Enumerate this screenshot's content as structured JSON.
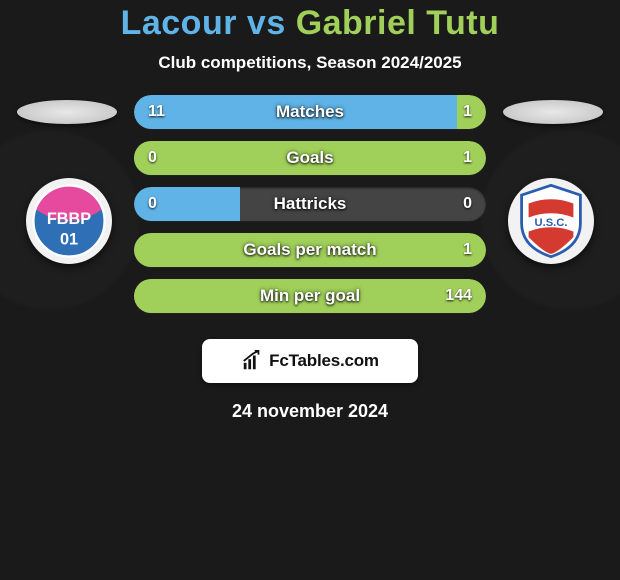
{
  "title": {
    "player1": "Lacour",
    "vs": "vs",
    "player2": "Gabriel Tutu",
    "player1_color": "#5fb3e6",
    "player2_color": "#a0d05a"
  },
  "subtitle": "Club competitions, Season 2024/2025",
  "background_color": "#1a1a1a",
  "bar_track_color": "#444444",
  "stats": [
    {
      "label": "Matches",
      "left_value": "11",
      "right_value": "1",
      "left_pct": 91.7,
      "right_pct": 8.3,
      "show_left_ellipse": true,
      "show_right_ellipse": true
    },
    {
      "label": "Goals",
      "left_value": "0",
      "right_value": "1",
      "left_pct": 18,
      "right_pct": 100,
      "show_left_ellipse": false,
      "show_right_ellipse": false
    },
    {
      "label": "Hattricks",
      "left_value": "0",
      "right_value": "0",
      "left_pct": 30,
      "right_pct": 0,
      "show_left_ellipse": false,
      "show_right_ellipse": false
    },
    {
      "label": "Goals per match",
      "left_value": "",
      "right_value": "1",
      "left_pct": 0,
      "right_pct": 100,
      "show_left_ellipse": false,
      "show_right_ellipse": false
    },
    {
      "label": "Min per goal",
      "left_value": "",
      "right_value": "144",
      "left_pct": 0,
      "right_pct": 100,
      "show_left_ellipse": false,
      "show_right_ellipse": false
    }
  ],
  "left_fill_color": "#5fb3e6",
  "right_fill_color": "#a0d05a",
  "watermark_text": "FcTables.com",
  "date": "24 november 2024",
  "crest_left": {
    "name": "FBBP",
    "bg_top": "#e64a9e",
    "bg_bottom": "#2f6fb5",
    "text": "FBBP"
  },
  "crest_right": {
    "name": "USC",
    "stripe": "#d43a2f",
    "outline": "#2a5db0",
    "text": "U.S.C."
  }
}
